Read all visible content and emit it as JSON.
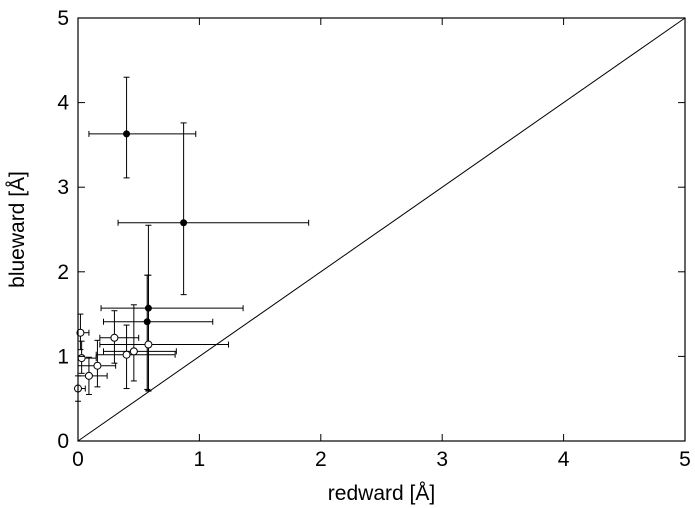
{
  "chart_data": {
    "type": "scatter",
    "title": "",
    "xlabel": "redward [Å]",
    "ylabel": "blueward [Å]",
    "xlim": [
      0,
      5
    ],
    "ylim": [
      0,
      5
    ],
    "xticks": [
      "0",
      "1",
      "2",
      "3",
      "4",
      "5"
    ],
    "yticks": [
      "0",
      "1",
      "2",
      "3",
      "4",
      "5"
    ],
    "grid": false,
    "legend": "none",
    "reference_line": {
      "x": [
        0,
        5
      ],
      "y": [
        0,
        5
      ]
    },
    "series": [
      {
        "marker": "filled-circle",
        "points": [
          {
            "x": 0.4,
            "y": 3.63,
            "xerr_low": 0.31,
            "xerr_high": 0.57,
            "yerr_low": 0.52,
            "yerr_high": 0.67
          },
          {
            "x": 0.87,
            "y": 2.58,
            "xerr_low": 0.54,
            "xerr_high": 1.03,
            "yerr_low": 0.85,
            "yerr_high": 1.18
          },
          {
            "x": 0.58,
            "y": 1.57,
            "xerr_low": 0.39,
            "xerr_high": 0.78,
            "yerr_low": 0.97,
            "yerr_high": 0.98
          },
          {
            "x": 0.57,
            "y": 1.41,
            "xerr_low": 0.36,
            "xerr_high": 0.54,
            "yerr_low": 0.8,
            "yerr_high": 0.55
          }
        ]
      },
      {
        "marker": "open-circle",
        "points": [
          {
            "x": 0.0,
            "y": 0.62,
            "xerr_low": 0.0,
            "xerr_high": 0.06,
            "yerr_low": 0.15,
            "yerr_high": 0.15
          },
          {
            "x": 0.02,
            "y": 1.28,
            "xerr_low": 0.02,
            "xerr_high": 0.07,
            "yerr_low": 0.2,
            "yerr_high": 0.22
          },
          {
            "x": 0.03,
            "y": 0.98,
            "xerr_low": 0.03,
            "xerr_high": 0.12,
            "yerr_low": 0.18,
            "yerr_high": 0.2
          },
          {
            "x": 0.09,
            "y": 0.77,
            "xerr_low": 0.09,
            "xerr_high": 0.15,
            "yerr_low": 0.22,
            "yerr_high": 0.22
          },
          {
            "x": 0.16,
            "y": 0.89,
            "xerr_low": 0.16,
            "xerr_high": 0.15,
            "yerr_low": 0.25,
            "yerr_high": 0.3
          },
          {
            "x": 0.3,
            "y": 1.22,
            "xerr_low": 0.12,
            "xerr_high": 0.2,
            "yerr_low": 0.3,
            "yerr_high": 0.32
          },
          {
            "x": 0.4,
            "y": 1.02,
            "xerr_low": 0.25,
            "xerr_high": 0.4,
            "yerr_low": 0.4,
            "yerr_high": 0.35
          },
          {
            "x": 0.46,
            "y": 1.06,
            "xerr_low": 0.25,
            "xerr_high": 0.35,
            "yerr_low": 0.35,
            "yerr_high": 0.55
          },
          {
            "x": 0.58,
            "y": 1.14,
            "xerr_low": 0.4,
            "xerr_high": 0.66,
            "yerr_low": 0.55,
            "yerr_high": 0.82
          }
        ]
      }
    ]
  }
}
